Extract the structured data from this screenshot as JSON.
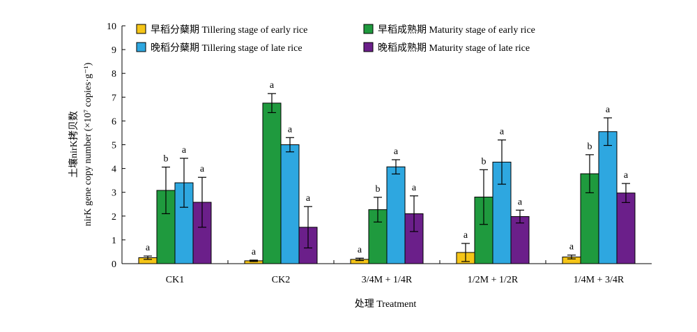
{
  "chart_data": {
    "type": "bar",
    "categories": [
      "CK1",
      "CK2",
      "3/4M + 1/4R",
      "1/2M + 1/2R",
      "1/4M + 3/4R"
    ],
    "series": [
      {
        "name": "早稻分蘖期 Tillering stage of early rice",
        "color": "#f5c518",
        "values": [
          0.25,
          0.12,
          0.18,
          0.47,
          0.28
        ],
        "errors": [
          0.07,
          0.03,
          0.05,
          0.38,
          0.08
        ],
        "letters": [
          "a",
          "a",
          "a",
          "a",
          "a"
        ]
      },
      {
        "name": "早稻成熟期 Maturity stage of early rice",
        "color": "#1f9a3e",
        "values": [
          3.08,
          6.75,
          2.27,
          2.8,
          3.78
        ],
        "errors": [
          0.98,
          0.4,
          0.52,
          1.15,
          0.8
        ],
        "letters": [
          "b",
          "a",
          "b",
          "b",
          "b"
        ]
      },
      {
        "name": "晚稻分蘖期 Tillering stage of late rice",
        "color": "#2ea7e0",
        "values": [
          3.4,
          5.0,
          4.07,
          4.27,
          5.55
        ],
        "errors": [
          1.03,
          0.3,
          0.3,
          0.93,
          0.58
        ],
        "letters": [
          "a",
          "a",
          "a",
          "a",
          "a"
        ]
      },
      {
        "name": "晚稻成熟期 Maturity stage of late rice",
        "color": "#6b1f8a",
        "values": [
          2.58,
          1.53,
          2.1,
          1.98,
          2.97
        ],
        "errors": [
          1.05,
          0.87,
          0.75,
          0.27,
          0.4
        ],
        "letters": [
          "a",
          "a",
          "a",
          "a",
          "a"
        ]
      }
    ],
    "xlabel": "处理 Treatment",
    "ylabel_cn": "土壤nirK拷贝数",
    "ylabel_en": "nirK gene copy number (×10⁷ copies·g⁻¹)",
    "ylim": [
      0,
      10
    ],
    "yticks": [
      0,
      1,
      2,
      3,
      4,
      5,
      6,
      7,
      8,
      9,
      10
    ],
    "grid": false,
    "legend_position": "top"
  }
}
